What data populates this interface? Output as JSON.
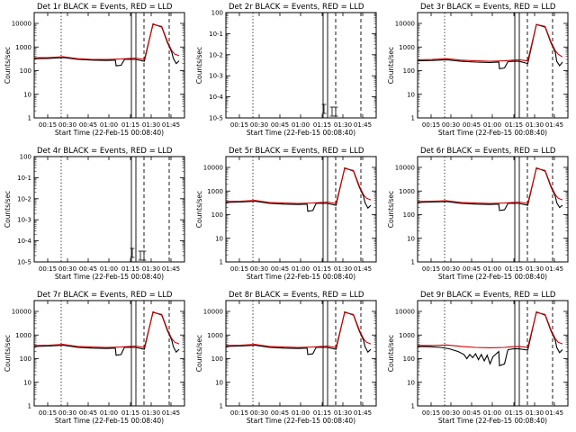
{
  "chart_data": [
    {
      "type": "line",
      "title": "Det 1r BLACK = Events, RED = LLD",
      "xlabel": "Start Time (22-Feb-15 00:08:40)",
      "ylabel": "Counts/sec",
      "xtick_labels": [
        "00:15",
        "00:30",
        "00:45",
        "01:00",
        "01:15",
        "01:30",
        "01:45"
      ],
      "ytick_labels": [
        "1",
        "10",
        "100",
        "1000",
        "10000"
      ],
      "yscale": "log",
      "xlim_minutes": [
        0,
        100
      ],
      "ylim": [
        1,
        10000
      ],
      "series": [
        {
          "color": "#000000",
          "x": [
            0,
            10,
            20,
            30,
            40,
            50,
            56,
            56.5,
            60,
            62,
            62.5,
            66,
            70,
            76,
            82,
            88,
            92,
            95,
            96,
            98,
            100
          ],
          "y": [
            320,
            330,
            360,
            300,
            280,
            270,
            280,
            160,
            170,
            280,
            300,
            300,
            300,
            250,
            9500,
            7000,
            1500,
            600,
            330,
            200,
            260
          ]
        },
        {
          "color": "#cc0000",
          "x": [
            0,
            10,
            20,
            30,
            40,
            50,
            60,
            66,
            70,
            76,
            82,
            88,
            92,
            95,
            97,
            100
          ],
          "y": [
            350,
            360,
            390,
            320,
            300,
            300,
            310,
            330,
            340,
            300,
            9000,
            7500,
            1700,
            700,
            500,
            430
          ]
        }
      ]
    },
    {
      "type": "line",
      "title": "Det 2r BLACK = Events, RED = LLD",
      "xlabel": "Start Time (22-Feb-15 00:08:40)",
      "ylabel": "Counts/sec",
      "xtick_labels": [
        "00:15",
        "00:30",
        "00:45",
        "01:00",
        "01:15",
        "01:30",
        "01:45"
      ],
      "ytick_labels": [
        "10^-5",
        "10^-4",
        "10^-3",
        "10^-2",
        "10^-1",
        "10^0"
      ],
      "yscale": "log",
      "series": []
    },
    {
      "type": "line",
      "title": "Det 3r BLACK = Events, RED = LLD",
      "xlabel": "Start Time (22-Feb-15 00:08:40)",
      "ylabel": "Counts/sec",
      "xtick_labels": [
        "00:15",
        "00:30",
        "00:45",
        "01:00",
        "01:15",
        "01:30",
        "01:45"
      ],
      "ytick_labels": [
        "1",
        "10",
        "100",
        "1000",
        "10000"
      ],
      "yscale": "log",
      "series": [
        {
          "color": "#000000",
          "x": [
            0,
            10,
            20,
            30,
            40,
            50,
            56,
            56.5,
            60,
            62,
            62.5,
            66,
            70,
            76,
            82,
            88,
            92,
            95,
            96,
            98,
            100
          ],
          "y": [
            260,
            270,
            290,
            250,
            230,
            220,
            230,
            120,
            130,
            220,
            240,
            250,
            250,
            200,
            9000,
            7000,
            1500,
            600,
            250,
            160,
            230
          ]
        },
        {
          "color": "#cc0000",
          "x": [
            0,
            10,
            20,
            30,
            40,
            50,
            60,
            66,
            70,
            76,
            82,
            88,
            92,
            95,
            97,
            100
          ],
          "y": [
            290,
            300,
            320,
            280,
            260,
            250,
            260,
            280,
            290,
            260,
            9000,
            7500,
            1700,
            700,
            500,
            380
          ]
        }
      ]
    },
    {
      "type": "line",
      "title": "Det 4r BLACK = Events, RED = LLD",
      "xlabel": "Start Time (22-Feb-15 00:08:40)",
      "ylabel": "Counts/sec",
      "xtick_labels": [
        "00:15",
        "00:30",
        "00:45",
        "01:00",
        "01:15",
        "01:30",
        "01:45"
      ],
      "ytick_labels": [
        "10^-5",
        "10^-4",
        "10^-3",
        "10^-2",
        "10^-1",
        "10^0"
      ],
      "yscale": "log",
      "series": []
    },
    {
      "type": "line",
      "title": "Det 5r BLACK = Events, RED = LLD",
      "xlabel": "Start Time (22-Feb-15 00:08:40)",
      "ylabel": "Counts/sec",
      "xtick_labels": [
        "00:15",
        "00:30",
        "00:45",
        "01:00",
        "01:15",
        "01:30",
        "01:45"
      ],
      "ytick_labels": [
        "1",
        "10",
        "100",
        "1000",
        "10000"
      ],
      "yscale": "log",
      "series": [
        {
          "color": "#000000",
          "x": [
            0,
            10,
            20,
            30,
            40,
            50,
            56,
            56.5,
            60,
            62,
            62.5,
            66,
            70,
            76,
            82,
            88,
            92,
            95,
            96,
            98,
            100
          ],
          "y": [
            330,
            340,
            370,
            300,
            280,
            270,
            280,
            140,
            150,
            280,
            300,
            300,
            300,
            250,
            9500,
            7000,
            1500,
            600,
            320,
            190,
            250
          ]
        },
        {
          "color": "#cc0000",
          "x": [
            0,
            10,
            20,
            30,
            40,
            50,
            60,
            66,
            70,
            76,
            82,
            88,
            92,
            95,
            97,
            100
          ],
          "y": [
            360,
            370,
            400,
            330,
            310,
            300,
            310,
            330,
            340,
            300,
            9000,
            7500,
            1700,
            700,
            500,
            420
          ]
        }
      ]
    },
    {
      "type": "line",
      "title": "Det 6r BLACK = Events, RED = LLD",
      "xlabel": "Start Time (22-Feb-15 00:08:40)",
      "ylabel": "Counts/sec",
      "xtick_labels": [
        "00:15",
        "00:30",
        "00:45",
        "01:00",
        "01:15",
        "01:30",
        "01:45"
      ],
      "ytick_labels": [
        "1",
        "10",
        "100",
        "1000",
        "10000"
      ],
      "yscale": "log",
      "series": [
        {
          "color": "#000000",
          "x": [
            0,
            10,
            20,
            30,
            40,
            50,
            56,
            56.5,
            60,
            62,
            62.5,
            66,
            70,
            76,
            82,
            88,
            92,
            95,
            96,
            98,
            100
          ],
          "y": [
            330,
            340,
            360,
            300,
            280,
            270,
            280,
            150,
            160,
            270,
            300,
            300,
            300,
            250,
            9500,
            7000,
            1500,
            600,
            320,
            200,
            250
          ]
        },
        {
          "color": "#cc0000",
          "x": [
            0,
            10,
            20,
            30,
            40,
            50,
            60,
            66,
            70,
            76,
            82,
            88,
            92,
            95,
            97,
            100
          ],
          "y": [
            360,
            370,
            390,
            330,
            310,
            300,
            310,
            330,
            340,
            300,
            9000,
            7500,
            1700,
            700,
            500,
            420
          ]
        }
      ]
    },
    {
      "type": "line",
      "title": "Det 7r BLACK = Events, RED = LLD",
      "xlabel": "Start Time (22-Feb-15 00:08:40)",
      "ylabel": "Counts/sec",
      "xtick_labels": [
        "00:15",
        "00:30",
        "00:45",
        "01:00",
        "01:15",
        "01:30",
        "01:45"
      ],
      "ytick_labels": [
        "1",
        "10",
        "100",
        "1000",
        "10000"
      ],
      "yscale": "log",
      "series": [
        {
          "color": "#000000",
          "x": [
            0,
            10,
            20,
            30,
            40,
            50,
            56,
            56.5,
            60,
            62,
            62.5,
            66,
            70,
            76,
            82,
            88,
            92,
            95,
            96,
            98,
            100
          ],
          "y": [
            330,
            340,
            370,
            300,
            280,
            270,
            280,
            140,
            150,
            280,
            300,
            300,
            300,
            250,
            9500,
            7000,
            1500,
            600,
            320,
            190,
            250
          ]
        },
        {
          "color": "#cc0000",
          "x": [
            0,
            10,
            20,
            30,
            40,
            50,
            60,
            66,
            70,
            76,
            82,
            88,
            92,
            95,
            97,
            100
          ],
          "y": [
            360,
            370,
            400,
            330,
            310,
            300,
            310,
            330,
            340,
            300,
            9000,
            7500,
            1700,
            700,
            500,
            420
          ]
        }
      ]
    },
    {
      "type": "line",
      "title": "Det 8r BLACK = Events, RED = LLD",
      "xlabel": "Start Time (22-Feb-15 00:08:40)",
      "ylabel": "Counts/sec",
      "xtick_labels": [
        "00:15",
        "00:30",
        "00:45",
        "01:00",
        "01:15",
        "01:30",
        "01:45"
      ],
      "ytick_labels": [
        "1",
        "10",
        "100",
        "1000",
        "10000"
      ],
      "yscale": "log",
      "series": [
        {
          "color": "#000000",
          "x": [
            0,
            10,
            20,
            30,
            40,
            50,
            56,
            56.5,
            60,
            62,
            62.5,
            66,
            70,
            76,
            82,
            88,
            92,
            95,
            96,
            98,
            100
          ],
          "y": [
            330,
            340,
            370,
            300,
            280,
            270,
            280,
            150,
            160,
            280,
            300,
            300,
            300,
            250,
            9500,
            7000,
            1500,
            600,
            320,
            190,
            250
          ]
        },
        {
          "color": "#cc0000",
          "x": [
            0,
            10,
            20,
            30,
            40,
            50,
            60,
            66,
            70,
            76,
            82,
            88,
            92,
            95,
            97,
            100
          ],
          "y": [
            360,
            370,
            400,
            330,
            310,
            300,
            310,
            330,
            340,
            300,
            9000,
            7500,
            1700,
            700,
            500,
            420
          ]
        }
      ]
    },
    {
      "type": "line",
      "title": "Det 9r BLACK = Events, RED = LLD",
      "xlabel": "Start Time (22-Feb-15 00:08:40)",
      "ylabel": "Counts/sec",
      "xtick_labels": [
        "00:15",
        "00:30",
        "00:45",
        "01:00",
        "01:15",
        "01:30",
        "01:45"
      ],
      "ytick_labels": [
        "1",
        "10",
        "100",
        "1000",
        "10000"
      ],
      "yscale": "log",
      "series": [
        {
          "color": "#000000",
          "x": [
            0,
            8,
            16,
            22,
            28,
            32,
            34,
            36,
            38,
            40,
            42,
            44,
            46,
            48,
            50,
            52,
            56,
            56.5,
            60,
            62,
            62.5,
            66,
            70,
            76,
            82,
            88,
            92,
            95,
            96,
            98,
            100
          ],
          "y": [
            330,
            320,
            300,
            260,
            200,
            150,
            100,
            150,
            110,
            160,
            90,
            150,
            80,
            140,
            60,
            120,
            200,
            50,
            60,
            200,
            240,
            260,
            260,
            230,
            9500,
            7000,
            1500,
            600,
            300,
            180,
            240
          ]
        },
        {
          "color": "#cc0000",
          "x": [
            0,
            10,
            20,
            30,
            40,
            50,
            60,
            66,
            70,
            76,
            82,
            88,
            92,
            95,
            97,
            100
          ],
          "y": [
            360,
            360,
            380,
            330,
            300,
            290,
            300,
            320,
            330,
            300,
            9000,
            7500,
            1700,
            700,
            500,
            420
          ]
        }
      ]
    }
  ],
  "colors": {
    "events": "#000000",
    "lld": "#cc0000",
    "background": "#ffffff"
  }
}
